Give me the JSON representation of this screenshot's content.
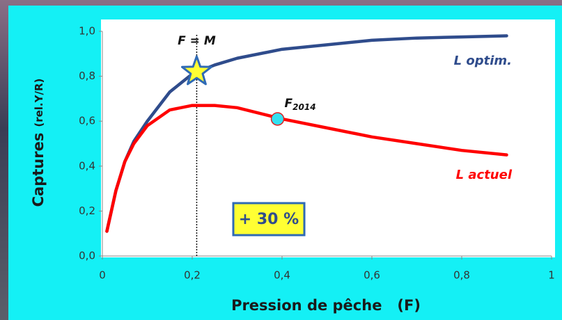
{
  "chart_data": {
    "type": "line",
    "ylabel": "Captures",
    "ylabel_unit": "(rel.Y/R)",
    "xlabel": "Pression de pêche   (F)",
    "x": [
      0.01,
      0.03,
      0.05,
      0.07,
      0.1,
      0.15,
      0.2,
      0.25,
      0.3,
      0.4,
      0.5,
      0.6,
      0.7,
      0.8,
      0.9
    ],
    "series": [
      {
        "name": "L optim.",
        "color": "#2f4c8c",
        "values": [
          0.11,
          0.29,
          0.42,
          0.51,
          0.6,
          0.73,
          0.81,
          0.85,
          0.88,
          0.92,
          0.94,
          0.96,
          0.97,
          0.975,
          0.98
        ]
      },
      {
        "name": "L actuel",
        "color": "#ff0000",
        "values": [
          0.11,
          0.29,
          0.42,
          0.5,
          0.58,
          0.65,
          0.67,
          0.67,
          0.66,
          0.61,
          0.57,
          0.53,
          0.5,
          0.47,
          0.45
        ]
      }
    ],
    "markers": [
      {
        "label": "F = M",
        "x": 0.21,
        "y": 0.82,
        "shape": "star"
      },
      {
        "label": "F",
        "subscript": "2014",
        "x": 0.39,
        "y": 0.61,
        "shape": "circle"
      }
    ],
    "annotation": "+ 30 %",
    "xlim": [
      0,
      1
    ],
    "xticks": [
      0,
      {
        "value": 0.2,
        "label": "0,2"
      },
      {
        "value": 0.4,
        "label": "0,4"
      },
      {
        "value": 0.6,
        "label": "0,6"
      },
      {
        "value": 0.8,
        "label": "0,8"
      },
      1
    ],
    "ylim": [
      0,
      1
    ],
    "yticks": [
      {
        "value": 0,
        "label": "0,0"
      },
      {
        "value": 0.2,
        "label": "0,2"
      },
      {
        "value": 0.4,
        "label": "0,4"
      },
      {
        "value": 0.6,
        "label": "0,6"
      },
      {
        "value": 0.8,
        "label": "0,8"
      },
      {
        "value": 1,
        "label": "1,0"
      }
    ]
  }
}
